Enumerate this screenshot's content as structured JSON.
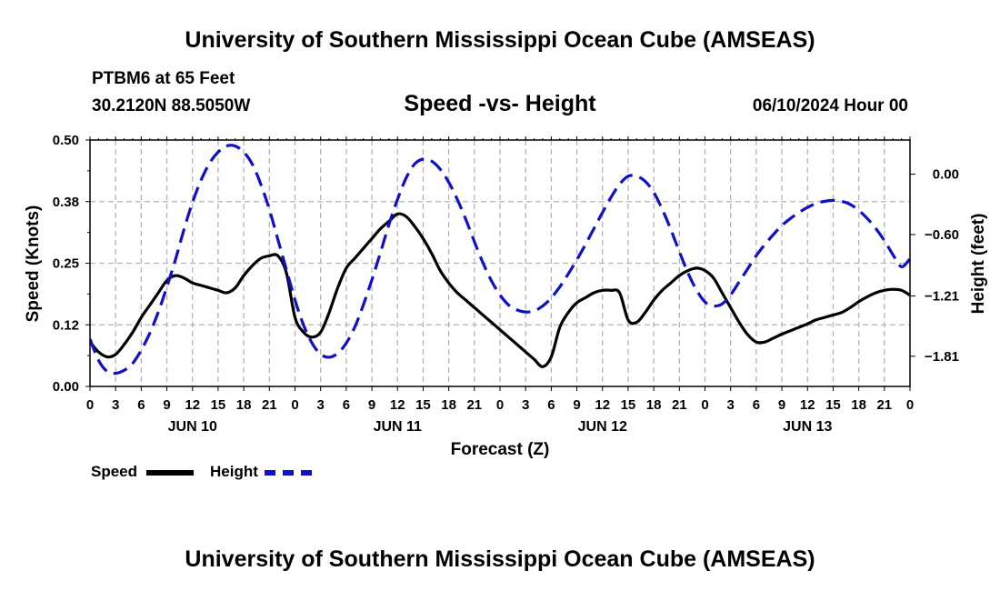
{
  "header": {
    "title": "University of Southern Mississippi Ocean Cube (AMSEAS)",
    "station": "PTBM6 at 65 Feet",
    "coords": "30.2120N  88.5050W",
    "subtitle": "Speed -vs- Height",
    "datetime": "06/10/2024 Hour 00"
  },
  "footer": {
    "title": "University of Southern Mississippi Ocean Cube (AMSEAS)"
  },
  "legend": {
    "speed": "Speed",
    "height": "Height"
  },
  "colors": {
    "speed": "#000000",
    "height": "#1010c8",
    "grid": "#b4b4b4"
  },
  "chart_data": {
    "type": "line",
    "xlabel": "Forecast (Z)",
    "ylabel_left": "Speed (Knots)",
    "ylabel_right": "Height (feet)",
    "xlim": [
      0,
      96
    ],
    "ylim_left": [
      0,
      0.5
    ],
    "ylim_right": [
      -2.11,
      0.34
    ],
    "x_tick_labels": [
      "0",
      "3",
      "6",
      "9",
      "12",
      "15",
      "18",
      "21",
      "0",
      "3",
      "6",
      "9",
      "12",
      "15",
      "18",
      "21",
      "0",
      "3",
      "6",
      "9",
      "12",
      "15",
      "18",
      "21",
      "0",
      "3",
      "6",
      "9",
      "12",
      "15",
      "18",
      "21",
      "0"
    ],
    "y_left_ticks": [
      {
        "v": 0,
        "label": "0.00"
      },
      {
        "v": 0.125,
        "label": "0.12"
      },
      {
        "v": 0.25,
        "label": "0.25"
      },
      {
        "v": 0.375,
        "label": "0.38"
      },
      {
        "v": 0.5,
        "label": "0.50"
      }
    ],
    "y_right_ticks": [
      {
        "v": 0,
        "label": "0.00"
      },
      {
        "v": -0.6,
        "label": "−0.60"
      },
      {
        "v": -1.21,
        "label": "−1.21"
      },
      {
        "v": -1.81,
        "label": "−1.81"
      }
    ],
    "day_labels": [
      {
        "x": 12,
        "label": "JUN 10"
      },
      {
        "x": 36,
        "label": "JUN 11"
      },
      {
        "x": 60,
        "label": "JUN 12"
      },
      {
        "x": 84,
        "label": "JUN 13"
      }
    ],
    "grid": true,
    "series": [
      {
        "name": "Speed",
        "axis": "left",
        "x": [
          0,
          1,
          2,
          3,
          4,
          5,
          6,
          7,
          8,
          9,
          10,
          11,
          12,
          13,
          14,
          15,
          16,
          17,
          18,
          19,
          20,
          21,
          22,
          23,
          24,
          25,
          26,
          27,
          28,
          29,
          30,
          31,
          32,
          33,
          34,
          35,
          36,
          37,
          38,
          39,
          40,
          41,
          42,
          43,
          44,
          45,
          46,
          47,
          48,
          49,
          50,
          51,
          52,
          53,
          54,
          55,
          56,
          57,
          58,
          59,
          60,
          61,
          62,
          63,
          64,
          65,
          66,
          67,
          68,
          69,
          70,
          71,
          72,
          73,
          74,
          75,
          76,
          77,
          78,
          79,
          80,
          81,
          82,
          83,
          84,
          85,
          86,
          87,
          88,
          89,
          90,
          91,
          92,
          93,
          94,
          95,
          96
        ],
        "values": [
          0.09,
          0.07,
          0.06,
          0.065,
          0.085,
          0.11,
          0.14,
          0.165,
          0.19,
          0.215,
          0.225,
          0.22,
          0.21,
          0.205,
          0.2,
          0.195,
          0.19,
          0.2,
          0.225,
          0.245,
          0.26,
          0.265,
          0.265,
          0.23,
          0.14,
          0.11,
          0.1,
          0.11,
          0.15,
          0.2,
          0.24,
          0.26,
          0.28,
          0.3,
          0.32,
          0.335,
          0.35,
          0.345,
          0.325,
          0.3,
          0.27,
          0.235,
          0.21,
          0.19,
          0.175,
          0.16,
          0.145,
          0.13,
          0.115,
          0.1,
          0.085,
          0.07,
          0.055,
          0.04,
          0.06,
          0.12,
          0.15,
          0.17,
          0.18,
          0.19,
          0.195,
          0.195,
          0.19,
          0.135,
          0.13,
          0.15,
          0.175,
          0.195,
          0.21,
          0.225,
          0.235,
          0.24,
          0.235,
          0.22,
          0.19,
          0.16,
          0.13,
          0.105,
          0.09,
          0.09,
          0.098,
          0.106,
          0.113,
          0.12,
          0.127,
          0.135,
          0.14,
          0.145,
          0.15,
          0.16,
          0.172,
          0.182,
          0.19,
          0.195,
          0.197,
          0.195,
          0.185
        ]
      },
      {
        "name": "Height",
        "axis": "right",
        "x": [
          0,
          1,
          2,
          3,
          4,
          5,
          6,
          7,
          8,
          9,
          10,
          11,
          12,
          13,
          14,
          15,
          16,
          17,
          18,
          19,
          20,
          21,
          22,
          23,
          24,
          25,
          26,
          27,
          28,
          29,
          30,
          31,
          32,
          33,
          34,
          35,
          36,
          37,
          38,
          39,
          40,
          41,
          42,
          43,
          44,
          45,
          46,
          47,
          48,
          49,
          50,
          51,
          52,
          53,
          54,
          55,
          56,
          57,
          58,
          59,
          60,
          61,
          62,
          63,
          64,
          65,
          66,
          67,
          68,
          69,
          70,
          71,
          72,
          73,
          74,
          75,
          76,
          77,
          78,
          79,
          80,
          81,
          82,
          83,
          84,
          85,
          86,
          87,
          88,
          89,
          90,
          91,
          92,
          93,
          94,
          95,
          96
        ],
        "values": [
          -1.64,
          -1.85,
          -1.96,
          -1.98,
          -1.95,
          -1.88,
          -1.75,
          -1.58,
          -1.37,
          -1.12,
          -0.85,
          -0.55,
          -0.28,
          -0.06,
          0.11,
          0.22,
          0.28,
          0.28,
          0.22,
          0.1,
          -0.1,
          -0.35,
          -0.65,
          -0.95,
          -1.25,
          -1.5,
          -1.68,
          -1.79,
          -1.82,
          -1.78,
          -1.68,
          -1.52,
          -1.3,
          -1.05,
          -0.78,
          -0.5,
          -0.25,
          -0.04,
          0.1,
          0.15,
          0.13,
          0.05,
          -0.08,
          -0.25,
          -0.45,
          -0.67,
          -0.88,
          -1.06,
          -1.2,
          -1.3,
          -1.35,
          -1.37,
          -1.36,
          -1.31,
          -1.23,
          -1.12,
          -0.99,
          -0.85,
          -0.7,
          -0.54,
          -0.38,
          -0.23,
          -0.1,
          -0.02,
          -0.02,
          -0.07,
          -0.18,
          -0.35,
          -0.55,
          -0.77,
          -0.98,
          -1.15,
          -1.27,
          -1.31,
          -1.29,
          -1.2,
          -1.07,
          -0.94,
          -0.81,
          -0.7,
          -0.6,
          -0.51,
          -0.44,
          -0.38,
          -0.33,
          -0.29,
          -0.27,
          -0.26,
          -0.27,
          -0.3,
          -0.36,
          -0.44,
          -0.54,
          -0.66,
          -0.8,
          -0.92,
          -0.84
        ]
      }
    ]
  }
}
